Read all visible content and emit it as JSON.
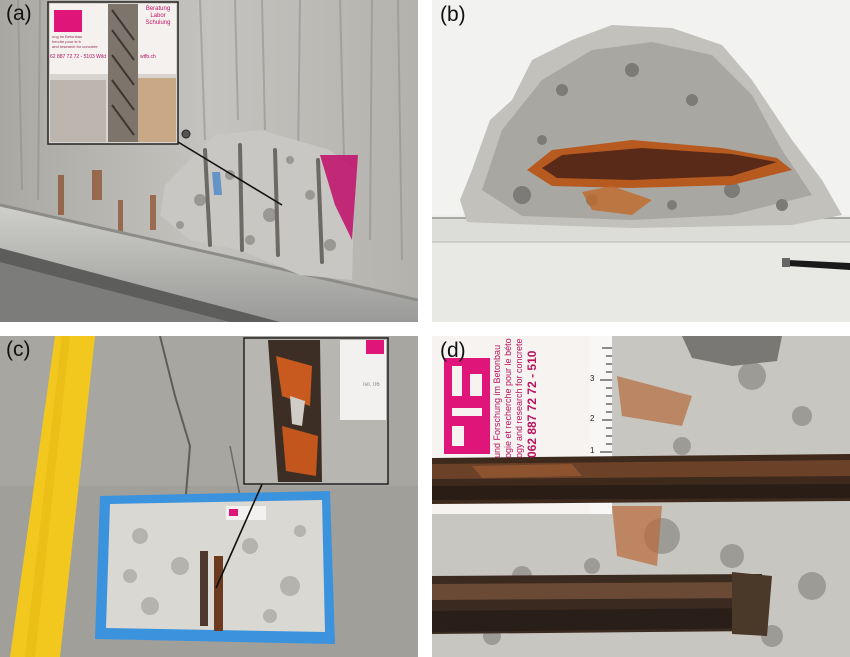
{
  "panels": {
    "a": {
      "label": "(a)",
      "inset_card": {
        "line1": "Beratung",
        "line2": "Labor",
        "line3": "Schulung",
        "line4": "ung im Betonbau",
        "line5": "herche pour le b",
        "line6": "and research for concrete",
        "phone": "62 887 72 72 - 5103 Wild",
        "web": "wtfb.ch"
      }
    },
    "b": {
      "label": "(b)"
    },
    "c": {
      "label": "(c)",
      "inset_card": {
        "line1": "Tel. 06"
      }
    },
    "d": {
      "label": "(d)",
      "card": {
        "line1": "und Forschung im Betonbau",
        "line2": "ogie et recherche pour le béto",
        "line3": "ogy and research for concrete",
        "phone": "062 887 72 72 - 510"
      },
      "ruler_numbers": [
        "3",
        "2",
        "1"
      ]
    }
  },
  "colors": {
    "concrete": "#b9b9b6",
    "rust": "#8a3a18",
    "brand_magenta": "#e0157a",
    "tape_blue": "#2f8fe0",
    "floor_yellow": "#f2c81e"
  }
}
